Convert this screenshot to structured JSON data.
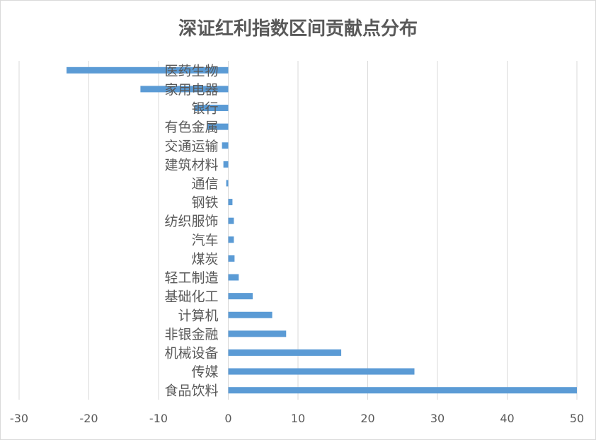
{
  "chart_data": {
    "type": "bar",
    "orientation": "horizontal",
    "title": "深证红利指数区间贡献点分布",
    "categories": [
      "医药生物",
      "家用电器",
      "银行",
      "有色金属",
      "交通运输",
      "建筑材料",
      "通信",
      "钢铁",
      "纺织服饰",
      "汽车",
      "煤炭",
      "轻工制造",
      "基础化工",
      "计算机",
      "非银金融",
      "机械设备",
      "传媒",
      "食品饮料"
    ],
    "values": [
      -23.2,
      -12.6,
      -4.8,
      -3.0,
      -0.9,
      -0.7,
      -0.3,
      0.6,
      0.8,
      0.8,
      0.9,
      1.5,
      3.5,
      6.3,
      8.3,
      16.2,
      26.7,
      50.0
    ],
    "xlim": [
      -30,
      50
    ],
    "xticks": [
      -30,
      -20,
      -10,
      0,
      10,
      20,
      30,
      40,
      50
    ],
    "xlabel": "",
    "ylabel": "",
    "grid": "vertical",
    "legend": "none",
    "bar_color": "#5B9BD5",
    "grid_color": "#D9D9D9",
    "text_color": "#595959"
  }
}
